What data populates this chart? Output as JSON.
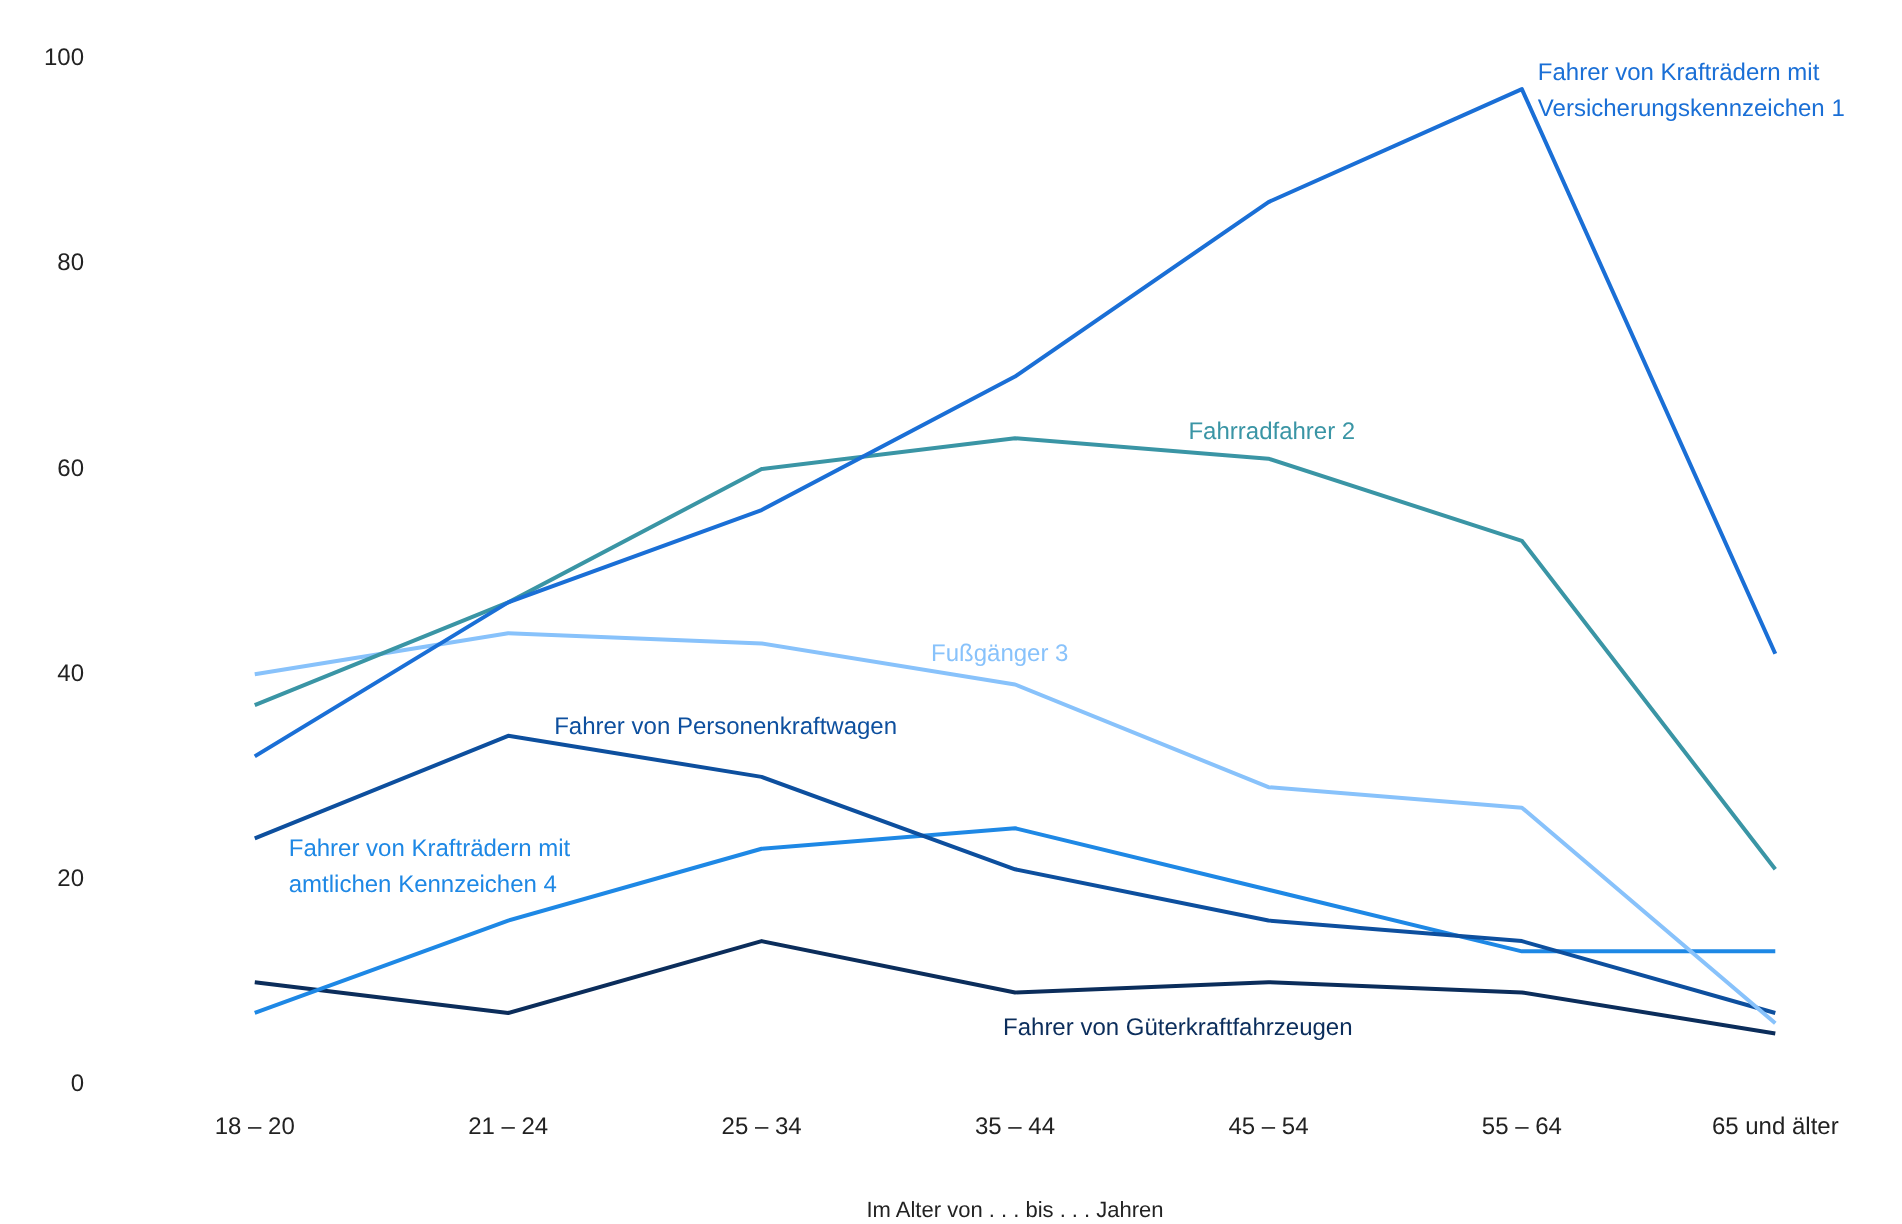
{
  "chart_data": {
    "type": "line",
    "xlabel": "Im Alter von . . . bis . . . Jahren",
    "categories": [
      "18 – 20",
      "21 – 24",
      "25 – 34",
      "35 – 44",
      "45 – 54",
      "55 – 64",
      "65 und älter"
    ],
    "ylim": [
      0,
      100
    ],
    "yticks": [
      0,
      20,
      40,
      60,
      80,
      100
    ],
    "grid": false,
    "legend": false,
    "marker": "none",
    "line_style": "solid",
    "series": [
      {
        "name": "Fahrer von Krafträdern mit Versicherungskennzeichen 1",
        "color": "#1a6fd6",
        "values": [
          32,
          47,
          56,
          69,
          86,
          97,
          42
        ]
      },
      {
        "name": "Fahrradfahrer 2",
        "color": "#3a95a5",
        "values": [
          37,
          47,
          60,
          63,
          61,
          53,
          21
        ]
      },
      {
        "name": "Fußgänger 3",
        "color": "#88c2fb",
        "values": [
          40,
          44,
          43,
          39,
          29,
          27,
          6
        ]
      },
      {
        "name": "Fahrer von Personenkraftwagen",
        "color": "#0d4f9e",
        "values": [
          24,
          34,
          30,
          21,
          16,
          14,
          7
        ]
      },
      {
        "name": "Fahrer von Krafträdern mit amtlichen Kennzeichen 4",
        "color": "#1e88e5",
        "values": [
          7,
          16,
          23,
          25,
          19,
          13,
          13
        ]
      },
      {
        "name": "Fahrer von Güterkraftfahrzeugen",
        "color": "#0b2d5b",
        "values": [
          10,
          7,
          14,
          9,
          10,
          9,
          5
        ]
      }
    ]
  }
}
